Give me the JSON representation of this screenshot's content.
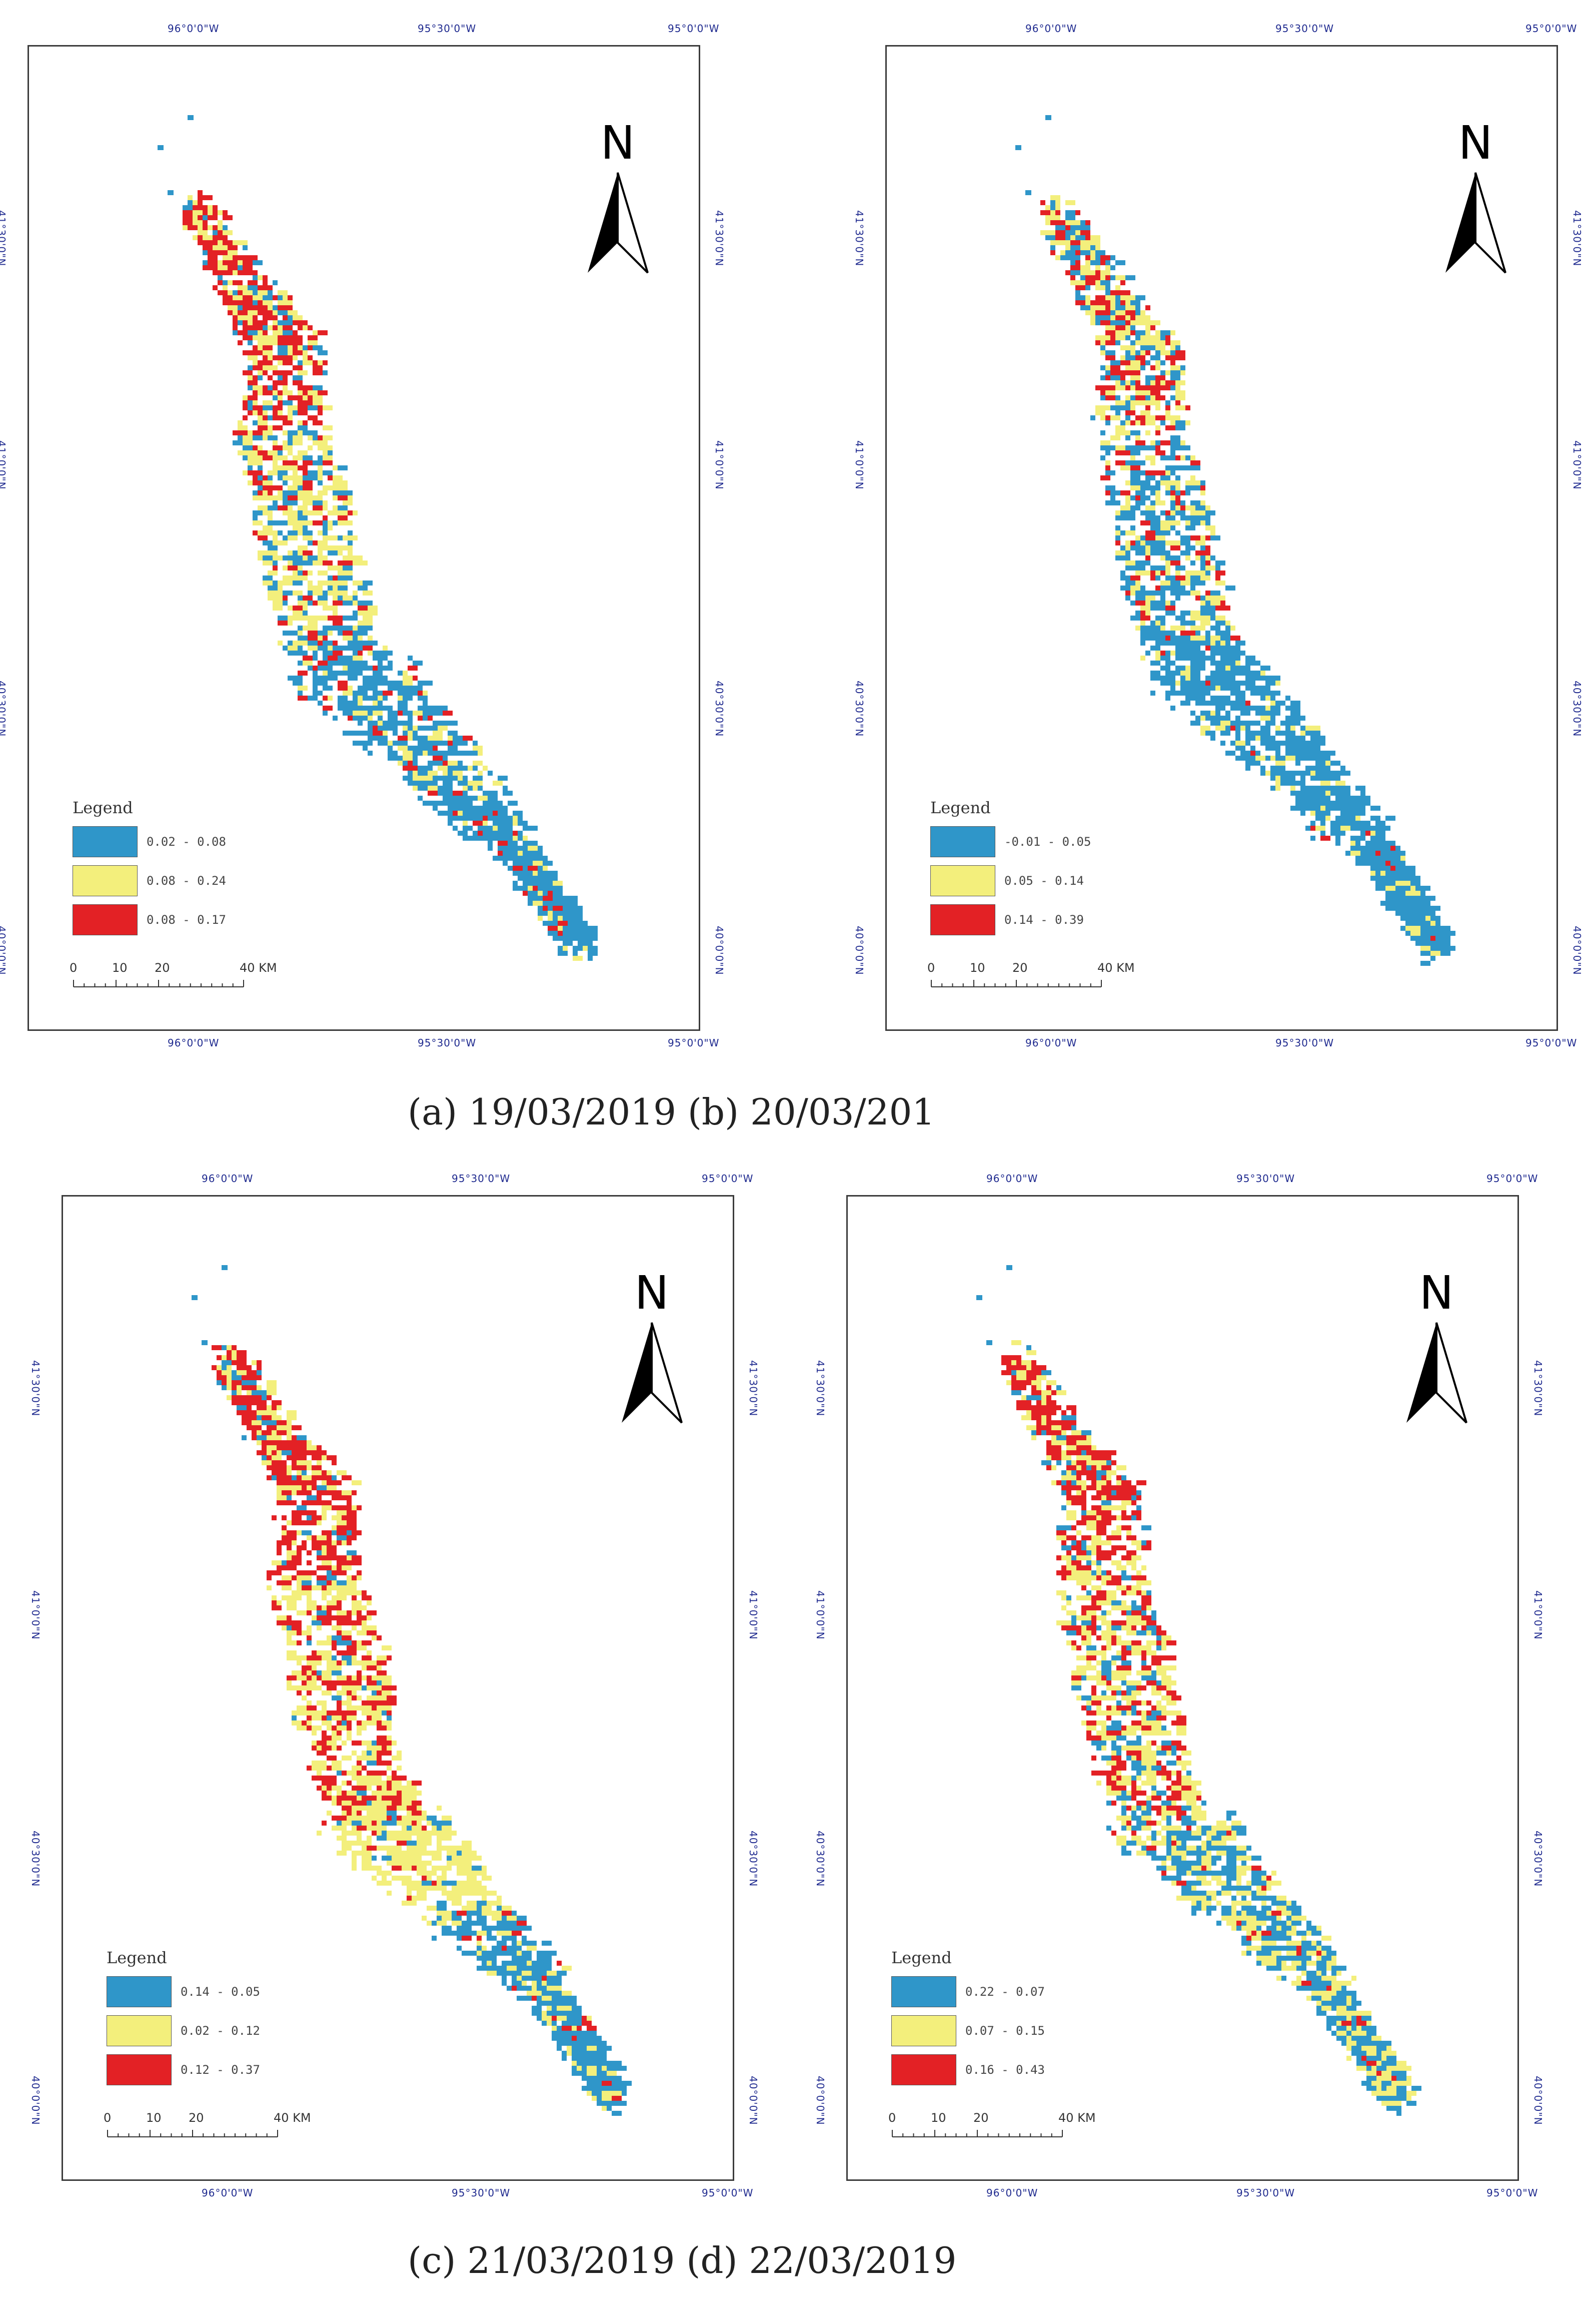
{
  "colors": {
    "blue": "#2f96c9",
    "yellow": "#f3ef7c",
    "red": "#e32125",
    "coord_text": "#1f2a8f",
    "frame": "#3b3b3b"
  },
  "coordinates": {
    "top": [
      "96°0'0\"W",
      "95°30'0\"W",
      "95°0'0\"W"
    ],
    "bottom": [
      "96°0'0\"W",
      "95°30'0\"W",
      "95°0'0\"W"
    ],
    "left": [
      "40°0'0\"N",
      "40°30'0\"N",
      "41°0'0\"N",
      "41°30'0\"N"
    ],
    "right": [
      "40°0'0\"N",
      "40°30'0\"N",
      "41°0'0\"N",
      "41°30'0\"N"
    ]
  },
  "north_arrow": {
    "label": "N",
    "icon": "north-arrow-icon"
  },
  "scale_bar": {
    "ticks": [
      "0",
      "10",
      "20",
      "40 KM"
    ]
  },
  "legend_title": "Legend",
  "panels": [
    {
      "id": "a",
      "legend": [
        "0.02 - 0.08",
        "0.08 - 0.24",
        "0.08 - 0.17"
      ]
    },
    {
      "id": "b",
      "legend": [
        "-0.01 - 0.05",
        "0.05 - 0.14",
        "0.14 - 0.39"
      ]
    },
    {
      "id": "c",
      "legend": [
        "0.14 - 0.05",
        "0.02 - 0.12",
        "0.12 - 0.37"
      ]
    },
    {
      "id": "d",
      "legend": [
        "0.22 - 0.07",
        "0.07 - 0.15",
        "0.16 - 0.43"
      ]
    }
  ],
  "captions": {
    "top": "(a) 19/03/2019 (b) 20/03/201",
    "bottom": "(c) 21/03/2019 (d) 22/03/2019"
  }
}
